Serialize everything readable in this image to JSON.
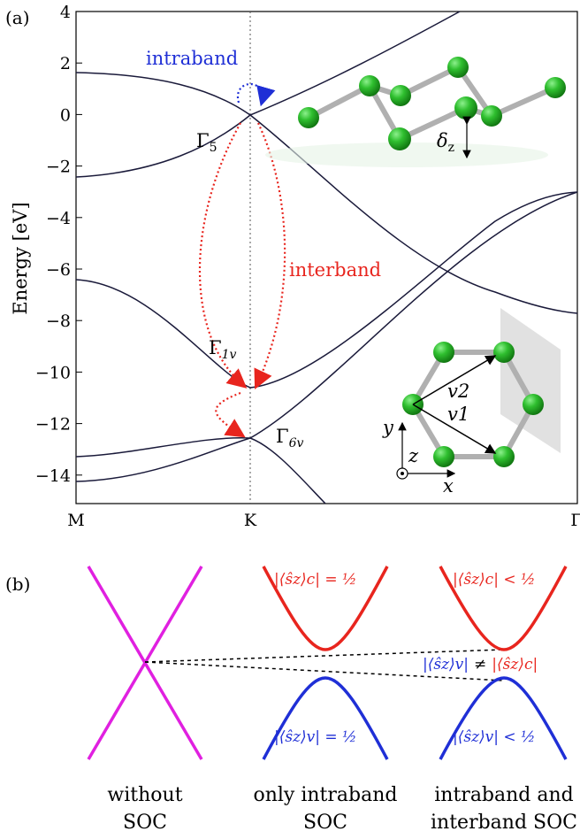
{
  "panel_a": {
    "label": "(a)",
    "ylabel": "Energy [eV]",
    "yticks": [
      "4",
      "2",
      "0",
      "−2",
      "−4",
      "−6",
      "−8",
      "−10",
      "−12",
      "−14"
    ],
    "xticks": [
      "M",
      "K",
      "Γ"
    ],
    "annotations": {
      "intraband": "intraband",
      "interband": "interband",
      "gamma5": "Γ5",
      "gamma1v": "Γ1v",
      "gamma6v": "Γ6v",
      "delta_z": "δz",
      "v1": "v1",
      "v2": "v2",
      "axis_x": "x",
      "axis_y": "y",
      "axis_z": "z"
    },
    "colors": {
      "bands": "#1a1a3a",
      "intraband": "#1f2fd6",
      "interband": "#e8251e",
      "atoms": "#2fbf2f"
    }
  },
  "panel_b": {
    "label": "(b)",
    "eq_c_half": "|⟨ŝz⟩c| = ½",
    "eq_v_half": "|⟨ŝz⟩v| = ½",
    "eq_c_less": "|⟨ŝz⟩c| < ½",
    "eq_v_less": "|⟨ŝz⟩v| < ½",
    "eq_neq_v": "|⟨ŝz⟩v|",
    "eq_neq_sym": "≠",
    "eq_neq_c": "|⟨ŝz⟩c|",
    "captions": {
      "c1_l1": "without",
      "c1_l2": "SOC",
      "c2_l1": "only intraband",
      "c2_l2": "SOC",
      "c3_l1": "intraband and",
      "c3_l2": "interband SOC"
    },
    "colors": {
      "dirac": "#e020e0",
      "conduction": "#e8251e",
      "valence": "#1f2fd6"
    }
  }
}
